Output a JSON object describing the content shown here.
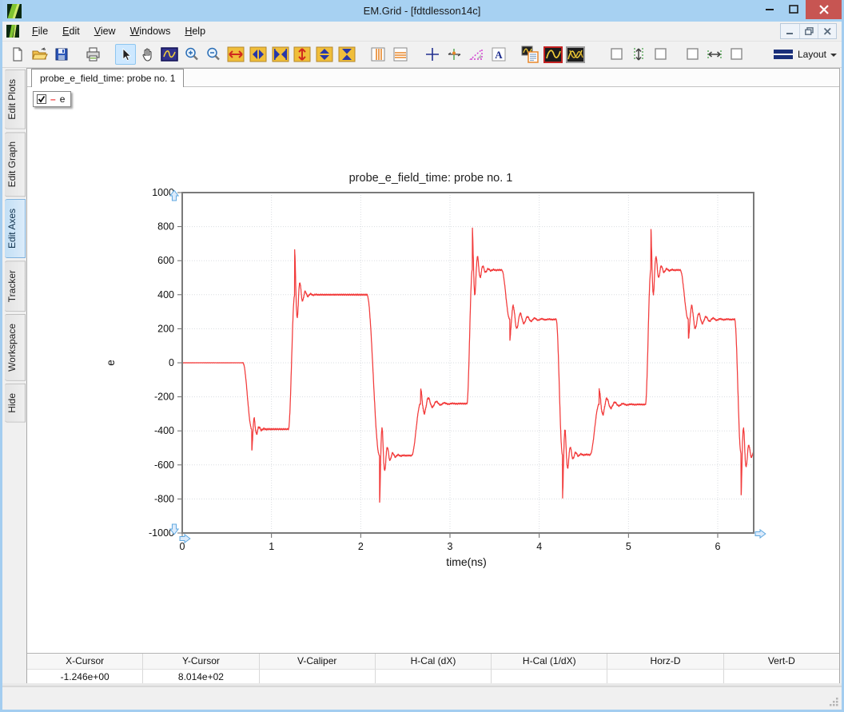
{
  "window": {
    "title": "EM.Grid - [fdtdlesson14c]"
  },
  "menu": {
    "items": [
      "File",
      "Edit",
      "View",
      "Windows",
      "Help"
    ]
  },
  "toolbar": {
    "layout_label": "Layout",
    "a_icon_label": "A",
    "selected_tool": "pointer"
  },
  "side_tabs": {
    "items": [
      {
        "label": "Edit Plots",
        "active": false
      },
      {
        "label": "Edit Graph",
        "active": false
      },
      {
        "label": "Edit Axes",
        "active": true
      },
      {
        "label": "Tracker",
        "active": false
      },
      {
        "label": "Workspace",
        "active": false
      },
      {
        "label": "Hide",
        "active": false
      }
    ]
  },
  "doc_tab": {
    "label": "probe_e_field_time: probe no. 1"
  },
  "legend": {
    "series_label": "e",
    "checked": true,
    "color": "#f23b3b"
  },
  "chart_data": {
    "type": "line",
    "title": "probe_e_field_time: probe no. 1",
    "xlabel": "time(ns)",
    "ylabel": "e",
    "xlim": [
      0,
      6.4
    ],
    "ylim": [
      -1000,
      1000
    ],
    "xticks": [
      0,
      1,
      2,
      3,
      4,
      5,
      6
    ],
    "yticks": [
      1000,
      800,
      600,
      400,
      200,
      0,
      -200,
      -400,
      -600,
      -800,
      -1000
    ],
    "grid": "dotted",
    "legend_position": "floating-top-left",
    "series": [
      {
        "name": "e",
        "color": "#f23b3b",
        "initial_level": 0,
        "description": "square-wave-like FDTD probe field with ringing overshoot at each transition, period ~2 ns",
        "events": [
          {
            "t": 0.68,
            "level": -390,
            "w": 0.1,
            "os": -130,
            "T": 0.055,
            "tau": 0.035
          },
          {
            "t": 1.19,
            "level": 400,
            "w": 0.07,
            "os": 260,
            "T": 0.06,
            "tau": 0.045
          },
          {
            "t": 2.07,
            "level": -545,
            "w": 0.14,
            "os": -290,
            "T": 0.06,
            "tau": 0.05
          },
          {
            "t": 2.57,
            "level": -240,
            "w": 0.1,
            "os": 90,
            "T": 0.09,
            "tau": 0.09
          },
          {
            "t": 3.19,
            "level": 545,
            "w": 0.06,
            "os": 255,
            "T": 0.06,
            "tau": 0.05
          },
          {
            "t": 3.58,
            "level": 255,
            "w": 0.09,
            "os": -115,
            "T": 0.08,
            "tau": 0.1
          },
          {
            "t": 4.19,
            "level": -540,
            "w": 0.07,
            "os": -260,
            "T": 0.06,
            "tau": 0.05
          },
          {
            "t": 4.57,
            "level": -245,
            "w": 0.1,
            "os": 95,
            "T": 0.09,
            "tau": 0.09
          },
          {
            "t": 5.19,
            "level": 545,
            "w": 0.06,
            "os": 255,
            "T": 0.06,
            "tau": 0.05
          },
          {
            "t": 5.58,
            "level": 255,
            "w": 0.09,
            "os": -115,
            "T": 0.08,
            "tau": 0.1
          },
          {
            "t": 6.19,
            "level": -530,
            "w": 0.07,
            "os": -265,
            "T": 0.06,
            "tau": 0.05
          }
        ]
      }
    ]
  },
  "readout": {
    "columns": [
      {
        "header": "X-Cursor",
        "value": "-1.246e+00"
      },
      {
        "header": "Y-Cursor",
        "value": "8.014e+02"
      },
      {
        "header": "V-Caliper",
        "value": ""
      },
      {
        "header": "H-Cal (dX)",
        "value": ""
      },
      {
        "header": "H-Cal (1/dX)",
        "value": ""
      },
      {
        "header": "Horz-D",
        "value": ""
      },
      {
        "header": "Vert-D",
        "value": ""
      }
    ]
  },
  "colors": {
    "titlebar": "#a7d1f2",
    "close_button": "#c75552",
    "trace": "#f23b3b",
    "frame": "#7a7a7a",
    "grid": "#dadde1",
    "handle_fill": "#dcebfb",
    "handle_stroke": "#5fa8e0",
    "selected_tab": "#c2dff5"
  }
}
